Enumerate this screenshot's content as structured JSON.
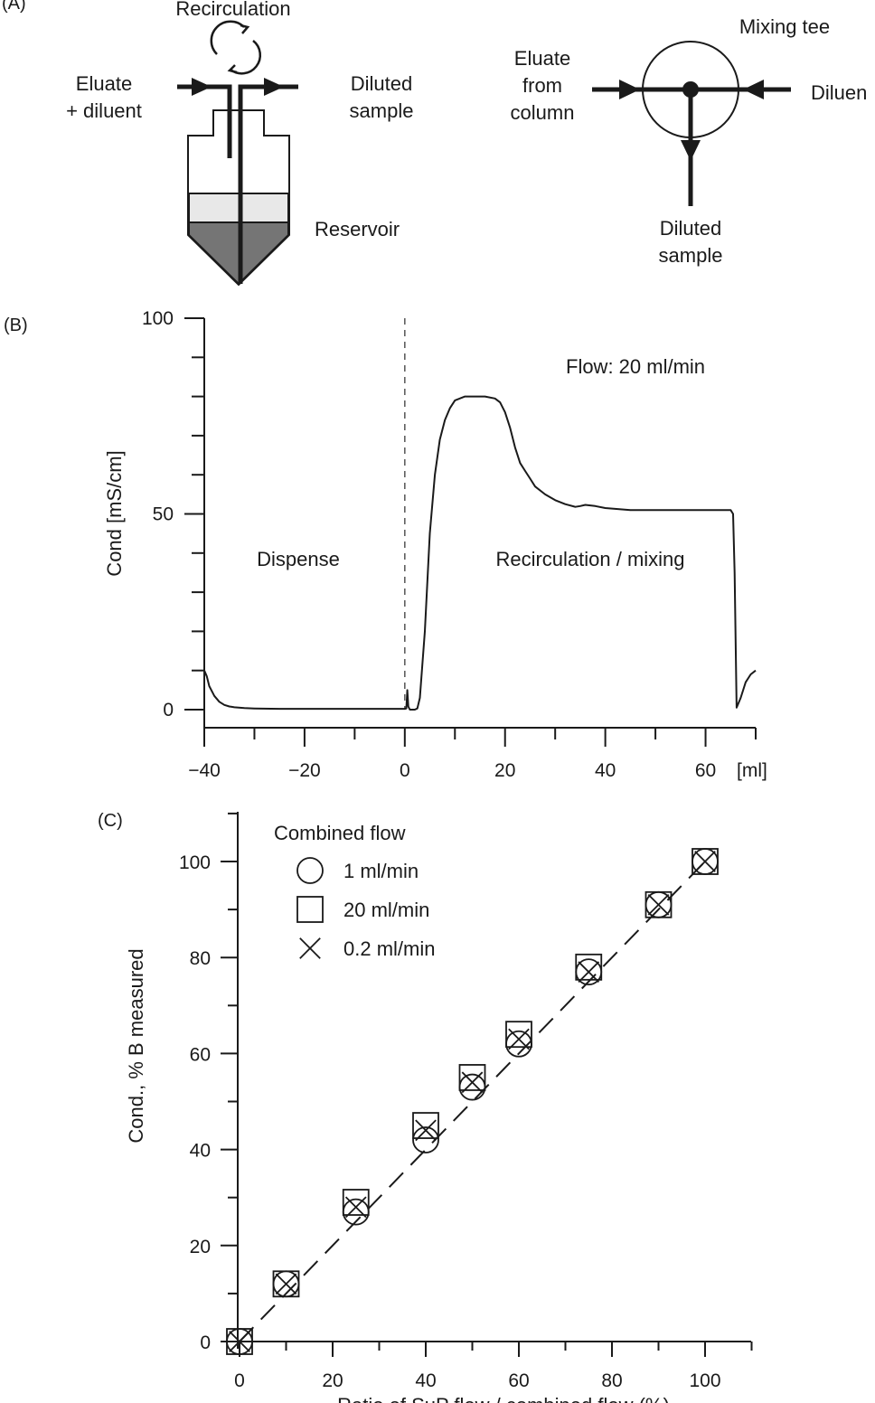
{
  "panel_a": {
    "label": "(A)",
    "reservoir": {
      "recirculation_label": "Recirculation",
      "inlet_label_1": "Eluate",
      "inlet_label_2": "+ diluent",
      "outlet_label_1": "Diluted",
      "outlet_label_2": "sample",
      "reservoir_label": "Reservoir"
    },
    "mixing_tee": {
      "title": "Mixing tee",
      "eluate_label_1": "Eluate",
      "eluate_label_2": "from",
      "eluate_label_3": "column",
      "diluent_label": "Diluen",
      "out_label_1": "Diluted",
      "out_label_2": "sample"
    }
  },
  "chart_data": [
    {
      "panel": "(B)",
      "type": "line",
      "ylabel": "Cond [mS/cm]",
      "x_unit_label": "[ml]",
      "xlim": [
        -40,
        70
      ],
      "ylim": [
        0,
        100
      ],
      "x_ticks": [
        -40,
        -20,
        0,
        20,
        40,
        60
      ],
      "x_tick_labels": [
        "−40",
        "−20",
        "0",
        "20",
        "40",
        "60"
      ],
      "y_ticks": [
        0,
        50,
        100
      ],
      "y_tick_labels": [
        "0",
        "50",
        "100"
      ],
      "annotations": {
        "flow": "Flow: 20 ml/min",
        "left_region": "Dispense",
        "right_region": "Recirculation / mixing"
      },
      "divider_x": 0,
      "series": [
        {
          "x": [
            -40,
            -39.5,
            -39,
            -38,
            -37,
            -36,
            -35,
            -34,
            -32,
            -30,
            -25,
            -20,
            -10,
            0,
            0.3,
            0.5,
            0.7,
            1,
            2,
            2.5,
            3,
            4,
            5,
            6,
            7,
            8,
            9,
            10,
            12,
            14,
            16,
            18,
            19,
            20,
            21,
            22,
            23,
            24,
            25,
            26,
            28,
            30,
            32,
            34,
            35,
            36,
            38,
            40,
            45,
            50,
            55,
            60,
            65,
            65.5,
            65.8,
            66.2,
            67,
            68,
            69,
            70
          ],
          "y": [
            10,
            8.5,
            6,
            3.5,
            2,
            1.2,
            0.8,
            0.6,
            0.4,
            0.3,
            0.2,
            0.2,
            0.2,
            0.2,
            0.3,
            5,
            0.8,
            0,
            0,
            0.3,
            3,
            20,
            45,
            60,
            69,
            74,
            77,
            79,
            80,
            80,
            80,
            79.5,
            78.5,
            76,
            72,
            67,
            63,
            61,
            59,
            57,
            55,
            53.5,
            52.5,
            51.8,
            52,
            52.3,
            52,
            51.5,
            51,
            51,
            51,
            51,
            51,
            50,
            35,
            0.5,
            3,
            7,
            9,
            10
          ]
        }
      ]
    },
    {
      "panel": "(C)",
      "type": "scatter",
      "ylabel": "Cond., % B measured",
      "xlabel": "Ratio of SuP flow / combined flow (%)",
      "xlim": [
        -3,
        110
      ],
      "ylim": [
        -1,
        110
      ],
      "x_ticks": [
        0,
        20,
        40,
        60,
        80,
        100
      ],
      "y_ticks": [
        0,
        20,
        40,
        60,
        80,
        100
      ],
      "legend_title": "Combined flow",
      "legend_position": "top-left",
      "reference_line": {
        "style": "dashed",
        "x": [
          0,
          100
        ],
        "y": [
          0,
          100
        ]
      },
      "series": [
        {
          "name": "1 ml/min",
          "marker": "circle",
          "x": [
            0,
            10,
            25,
            40,
            50,
            60,
            75,
            90,
            100
          ],
          "y": [
            0,
            12,
            27,
            42,
            53,
            62,
            77,
            91,
            100
          ]
        },
        {
          "name": "20 ml/min",
          "marker": "square",
          "x": [
            0,
            10,
            25,
            40,
            50,
            60,
            75,
            90,
            100
          ],
          "y": [
            0,
            12,
            29,
            45,
            55,
            64,
            78,
            91,
            100
          ]
        },
        {
          "name": "0.2 ml/min",
          "marker": "x",
          "x": [
            0,
            10,
            25,
            40,
            50,
            60,
            75,
            90,
            100
          ],
          "y": [
            0,
            12,
            28,
            44,
            54,
            63,
            77,
            91,
            100
          ]
        }
      ]
    }
  ]
}
